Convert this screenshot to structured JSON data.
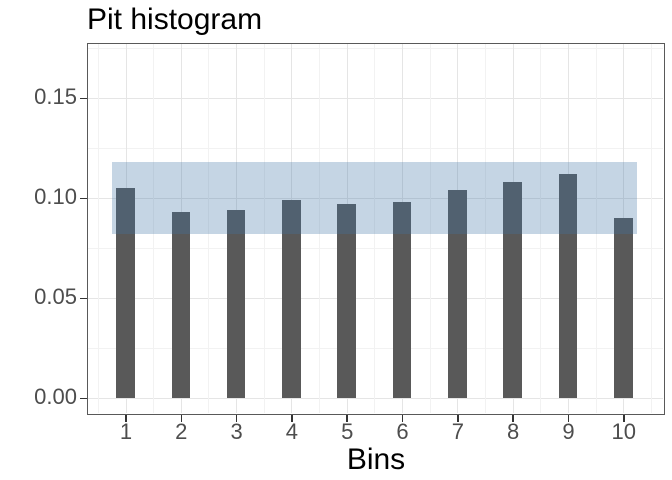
{
  "chart_data": {
    "type": "bar",
    "title": "Pit histogram",
    "xlabel": "Bins",
    "ylabel": "",
    "categories": [
      "1",
      "2",
      "3",
      "4",
      "5",
      "6",
      "7",
      "8",
      "9",
      "10"
    ],
    "values": [
      0.105,
      0.093,
      0.094,
      0.099,
      0.097,
      0.098,
      0.104,
      0.108,
      0.112,
      0.09
    ],
    "y_ticks": [
      0.0,
      0.05,
      0.1,
      0.15
    ],
    "y_tick_labels": [
      "0.00",
      "0.05",
      "0.10",
      "0.15"
    ],
    "y_minor_ticks": [
      0.025,
      0.075,
      0.125,
      0.175
    ],
    "ylim": [
      -0.008,
      0.178
    ],
    "grid": true,
    "legend": false,
    "band": {
      "lower": 0.082,
      "upper": 0.118,
      "kind": "confidence-band"
    },
    "colors": {
      "bar": "#595959",
      "band": "#3E74A7",
      "band_alpha": 0.3,
      "axis_text": "#4d4d4d",
      "title_text": "#000000",
      "panel_border": "#595959",
      "grid_major": "#e5e5e5",
      "grid_minor": "#f2f2f2",
      "background": "#ffffff"
    }
  }
}
